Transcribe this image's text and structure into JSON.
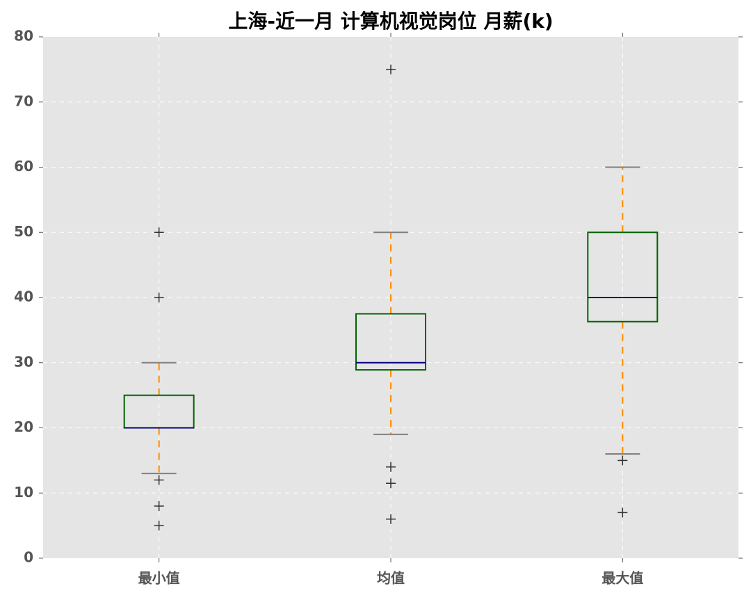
{
  "chart_data": {
    "type": "box",
    "title": "上海-近一月 计算机视觉岗位 月薪(k)",
    "categories": [
      "最小值",
      "均值",
      "最大值"
    ],
    "boxes": [
      {
        "whisker_low": 13,
        "q1": 20,
        "median": 20,
        "q3": 25,
        "whisker_high": 30,
        "outliers": [
          50,
          40,
          12,
          8,
          5
        ]
      },
      {
        "whisker_low": 19,
        "q1": 28.9,
        "median": 30,
        "q3": 37.5,
        "whisker_high": 50,
        "outliers": [
          75,
          14,
          11.5,
          6
        ]
      },
      {
        "whisker_low": 16,
        "q1": 36.3,
        "median": 40,
        "q3": 50,
        "whisker_high": 60,
        "outliers": [
          15,
          7
        ]
      }
    ],
    "ylim": [
      0,
      80
    ],
    "yticks": [
      0,
      10,
      20,
      30,
      40,
      50,
      60,
      70,
      80
    ],
    "grid": true,
    "box_color": "#006400",
    "median_color": "#000080",
    "whisker_color": "#ff8c00",
    "cap_color": "#808080",
    "flier_color": "#333333"
  }
}
